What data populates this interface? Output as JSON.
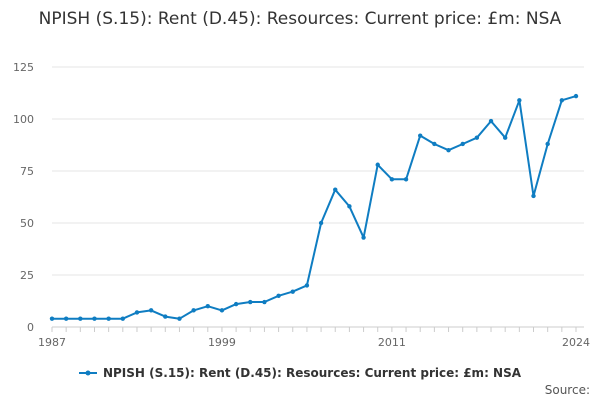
{
  "chart_data": {
    "type": "line",
    "title": "NPISH (S.15): Rent (D.45): Resources: Current price: £m: NSA",
    "xlabel": "",
    "ylabel": "",
    "x_range": [
      1987,
      2024
    ],
    "ylim": [
      0,
      125
    ],
    "x_ticks": [
      1987,
      1999,
      2011,
      2024
    ],
    "y_ticks": [
      0,
      25,
      50,
      75,
      100,
      125
    ],
    "grid": true,
    "legend_position": "bottom",
    "series": [
      {
        "name": "NPISH (S.15): Rent (D.45): Resources: Current price: £m: NSA",
        "color": "#0f7dc2",
        "x": [
          1987,
          1988,
          1989,
          1990,
          1991,
          1992,
          1993,
          1994,
          1995,
          1996,
          1997,
          1998,
          1999,
          2000,
          2001,
          2002,
          2003,
          2004,
          2005,
          2006,
          2007,
          2008,
          2009,
          2010,
          2011,
          2012,
          2013,
          2014,
          2015,
          2016,
          2017,
          2018,
          2019,
          2020,
          2021,
          2022,
          2023,
          2024
        ],
        "values": [
          4,
          4,
          4,
          4,
          4,
          4,
          7,
          8,
          5,
          4,
          8,
          10,
          8,
          11,
          12,
          12,
          15,
          17,
          20,
          50,
          66,
          58,
          43,
          78,
          71,
          71,
          92,
          88,
          85,
          88,
          91,
          99,
          91,
          109,
          63,
          88,
          109,
          111
        ]
      }
    ]
  },
  "source_label": "Source:"
}
